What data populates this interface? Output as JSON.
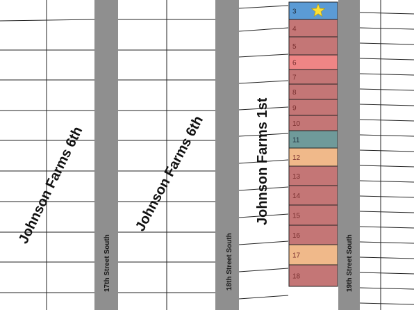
{
  "map": {
    "streets": [
      {
        "id": "17th",
        "label": "17th Street South"
      },
      {
        "id": "18th",
        "label": "18th Street South"
      },
      {
        "id": "19th",
        "label": "19th Street South"
      }
    ],
    "subdivisions": [
      {
        "id": "jf6-left",
        "label": "Johnson Farms 6th"
      },
      {
        "id": "jf6-mid",
        "label": "Johnson Farms 6th"
      },
      {
        "id": "jf1",
        "label": "Johnson Farms 1st"
      }
    ],
    "highlighted_lots": [
      {
        "number": "3",
        "color": "#5b9bd5",
        "marker": "star-icon",
        "marker_color": "#ffe033"
      },
      {
        "number": "4",
        "color": "#c47676"
      },
      {
        "number": "5",
        "color": "#c47676"
      },
      {
        "number": "6",
        "color": "#ef8585"
      },
      {
        "number": "7",
        "color": "#c47676"
      },
      {
        "number": "8",
        "color": "#c47676"
      },
      {
        "number": "9",
        "color": "#c47676"
      },
      {
        "number": "10",
        "color": "#c47676"
      },
      {
        "number": "11",
        "color": "#6f9a9a"
      },
      {
        "number": "12",
        "color": "#f0b98a"
      },
      {
        "number": "13",
        "color": "#c47676"
      },
      {
        "number": "14",
        "color": "#c47676"
      },
      {
        "number": "15",
        "color": "#c47676"
      },
      {
        "number": "16",
        "color": "#c47676"
      },
      {
        "number": "17",
        "color": "#f0b98a"
      },
      {
        "number": "18",
        "color": "#c47676"
      }
    ],
    "colors": {
      "road": "#8f8f8f",
      "lot_line": "#222222",
      "background": "#ffffff"
    }
  }
}
